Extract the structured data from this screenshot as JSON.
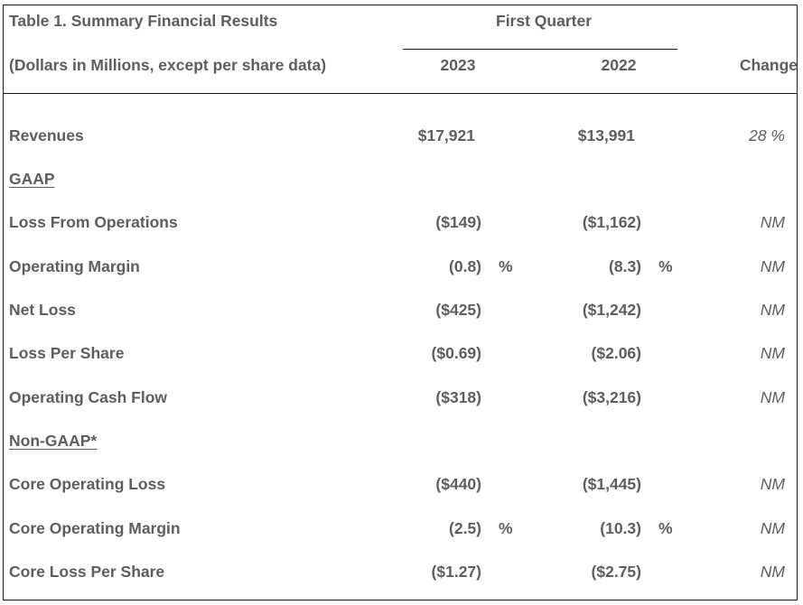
{
  "table": {
    "title": "Table 1. Summary Financial Results",
    "subtitle": "(Dollars in Millions, except per share data)",
    "period_header": "First Quarter",
    "col_2023": "2023",
    "col_2022": "2022",
    "col_change": "Change",
    "rows": [
      {
        "label": "Revenues",
        "v2023": "$17,921",
        "v2022": "$13,991",
        "change": "28 %"
      },
      {
        "label": "GAAP"
      },
      {
        "label": "Loss From Operations",
        "v2023": "($149)",
        "v2022": "($1,162)",
        "change": "NM"
      },
      {
        "label": "Operating Margin",
        "v2023": "(0.8)",
        "p2023": "%",
        "v2022": "(8.3)",
        "p2022": "%",
        "change": "NM"
      },
      {
        "label": "Net Loss",
        "v2023": "($425)",
        "v2022": "($1,242)",
        "change": "NM"
      },
      {
        "label": "Loss Per Share",
        "v2023": "($0.69)",
        "v2022": "($2.06)",
        "change": "NM"
      },
      {
        "label": "Operating Cash Flow",
        "v2023": "($318)",
        "v2022": "($3,216)",
        "change": "NM"
      },
      {
        "label": "Non-GAAP*"
      },
      {
        "label": "Core Operating Loss",
        "v2023": "($440)",
        "v2022": "($1,445)",
        "change": "NM"
      },
      {
        "label": "Core Operating Margin",
        "v2023": "(2.5)",
        "p2023": "%",
        "v2022": "(10.3)",
        "p2022": "%",
        "change": "NM"
      },
      {
        "label": "Core Loss Per Share",
        "v2023": "($1.27)",
        "v2022": "($2.75)",
        "change": "NM"
      }
    ]
  }
}
